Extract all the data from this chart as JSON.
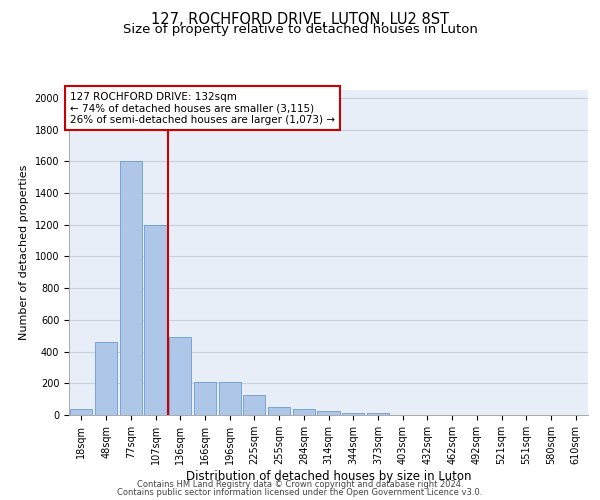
{
  "title": "127, ROCHFORD DRIVE, LUTON, LU2 8ST",
  "subtitle": "Size of property relative to detached houses in Luton",
  "xlabel": "Distribution of detached houses by size in Luton",
  "ylabel": "Number of detached properties",
  "bar_labels": [
    "18sqm",
    "48sqm",
    "77sqm",
    "107sqm",
    "136sqm",
    "166sqm",
    "196sqm",
    "225sqm",
    "255sqm",
    "284sqm",
    "314sqm",
    "344sqm",
    "373sqm",
    "403sqm",
    "432sqm",
    "462sqm",
    "492sqm",
    "521sqm",
    "551sqm",
    "580sqm",
    "610sqm"
  ],
  "bar_values": [
    35,
    460,
    1600,
    1200,
    490,
    210,
    210,
    125,
    50,
    40,
    25,
    15,
    10,
    0,
    0,
    0,
    0,
    0,
    0,
    0,
    0
  ],
  "bar_color": "#aec6e8",
  "bar_edge_color": "#5a8fc4",
  "annotation_line1": "127 ROCHFORD DRIVE: 132sqm",
  "annotation_line2": "← 74% of detached houses are smaller (3,115)",
  "annotation_line3": "26% of semi-detached houses are larger (1,073) →",
  "vline_color": "#cc0000",
  "annotation_box_color": "#cc0000",
  "vline_x": 3.5,
  "ylim": [
    0,
    2050
  ],
  "yticks": [
    0,
    200,
    400,
    600,
    800,
    1000,
    1200,
    1400,
    1600,
    1800,
    2000
  ],
  "grid_color": "#c8d0dc",
  "background_color": "#e8eef8",
  "footer_line1": "Contains HM Land Registry data © Crown copyright and database right 2024.",
  "footer_line2": "Contains public sector information licensed under the Open Government Licence v3.0.",
  "title_fontsize": 10.5,
  "subtitle_fontsize": 9.5,
  "xlabel_fontsize": 8.5,
  "ylabel_fontsize": 8,
  "tick_fontsize": 7,
  "annotation_fontsize": 7.5,
  "footer_fontsize": 6
}
